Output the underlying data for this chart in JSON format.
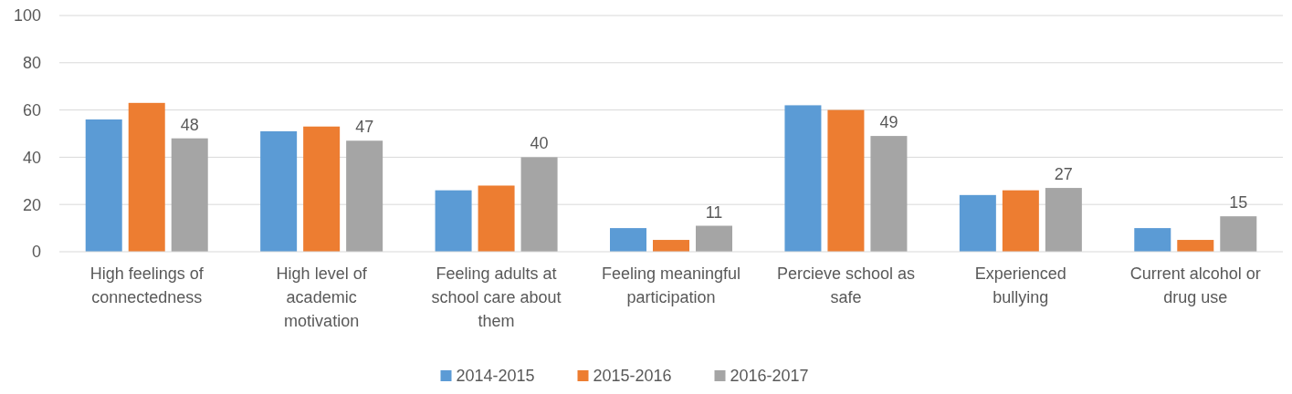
{
  "chart_data": {
    "type": "bar",
    "categories": [
      "High feelings of connectedness",
      "High level of academic motivation",
      "Feeling adults at school care about them",
      "Feeling meaningful participation",
      "Percieve school as safe",
      "Experienced bullying",
      "Current alcohol or drug use"
    ],
    "series": [
      {
        "name": "2014-2015",
        "color": "#5b9bd5",
        "values": [
          56,
          51,
          26,
          10,
          62,
          24,
          10
        ]
      },
      {
        "name": "2015-2016",
        "color": "#ed7d31",
        "values": [
          63,
          53,
          28,
          5,
          60,
          26,
          5
        ]
      },
      {
        "name": "2016-2017",
        "color": "#a5a5a5",
        "values": [
          48,
          47,
          40,
          11,
          49,
          27,
          15
        ],
        "value_labels": [
          "48",
          "47",
          "40",
          "11",
          "49",
          "27",
          "15"
        ]
      }
    ],
    "ylim": [
      0,
      100
    ],
    "yticks": [
      0,
      20,
      40,
      60,
      80,
      100
    ],
    "grid": "y",
    "legend": "bottom"
  }
}
